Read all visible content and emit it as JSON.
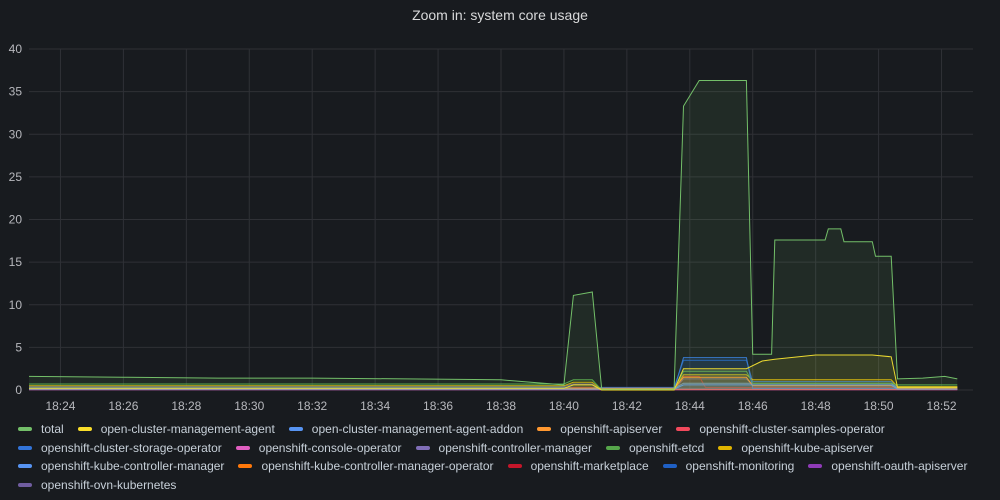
{
  "panel": {
    "title": "Zoom in: system core usage"
  },
  "chart_data": {
    "type": "line",
    "title": "Zoom in: system core usage",
    "xlabel": "",
    "ylabel": "",
    "x_ticks": [
      "18:24",
      "18:26",
      "18:28",
      "18:30",
      "18:32",
      "18:34",
      "18:36",
      "18:38",
      "18:40",
      "18:42",
      "18:44",
      "18:46",
      "18:48",
      "18:50",
      "18:52"
    ],
    "ylim": [
      0,
      40
    ],
    "y_ticks": [
      "0",
      "5",
      "10",
      "15",
      "20",
      "25",
      "30",
      "35",
      "40"
    ],
    "x_range": [
      "18:23",
      "18:53"
    ],
    "grid": true,
    "legend_position": "bottom",
    "series": [
      {
        "name": "total",
        "color": "#73bf69",
        "points": [
          [
            0,
            1.6
          ],
          [
            3,
            1.5
          ],
          [
            6,
            1.4
          ],
          [
            9,
            1.4
          ],
          [
            12,
            1.3
          ],
          [
            15,
            1.2
          ],
          [
            17,
            0.6
          ],
          [
            17.3,
            11.1
          ],
          [
            17.9,
            11.5
          ],
          [
            18.2,
            0.1
          ],
          [
            20.5,
            0.1
          ],
          [
            20.8,
            33.3
          ],
          [
            21.3,
            36.3
          ],
          [
            22.8,
            36.3
          ],
          [
            23,
            4.2
          ],
          [
            23.6,
            4.2
          ],
          [
            23.7,
            17.6
          ],
          [
            25.3,
            17.6
          ],
          [
            25.4,
            18.9
          ],
          [
            25.8,
            18.9
          ],
          [
            25.9,
            17.4
          ],
          [
            26.8,
            17.4
          ],
          [
            26.9,
            15.7
          ],
          [
            27.4,
            15.7
          ],
          [
            27.6,
            1.3
          ],
          [
            28.4,
            1.4
          ],
          [
            29.1,
            1.6
          ],
          [
            29.5,
            1.3
          ]
        ]
      },
      {
        "name": "open-cluster-management-agent",
        "color": "#fade2a",
        "points": [
          [
            0,
            0.2
          ],
          [
            17,
            0.2
          ],
          [
            17.3,
            0.6
          ],
          [
            17.9,
            0.6
          ],
          [
            18.2,
            0.0
          ],
          [
            20.5,
            0.0
          ],
          [
            20.8,
            2.5
          ],
          [
            22.8,
            2.5
          ],
          [
            23.3,
            3.4
          ],
          [
            23.7,
            3.6
          ],
          [
            25,
            4.1
          ],
          [
            26.8,
            4.1
          ],
          [
            27.4,
            3.9
          ],
          [
            27.6,
            0.3
          ],
          [
            29.5,
            0.3
          ]
        ]
      },
      {
        "name": "open-cluster-management-agent-addon",
        "color": "#5794f2",
        "points": [
          [
            0,
            0.1
          ],
          [
            20.5,
            0.1
          ],
          [
            20.8,
            0.6
          ],
          [
            27.4,
            0.6
          ],
          [
            27.6,
            0.1
          ],
          [
            29.5,
            0.1
          ]
        ]
      },
      {
        "name": "openshift-apiserver",
        "color": "#ff9830",
        "points": [
          [
            0,
            0.2
          ],
          [
            20.5,
            0.2
          ],
          [
            20.8,
            1.5
          ],
          [
            22.8,
            1.5
          ],
          [
            23,
            0.5
          ],
          [
            27.4,
            0.5
          ],
          [
            27.6,
            0.2
          ],
          [
            29.5,
            0.2
          ]
        ]
      },
      {
        "name": "openshift-cluster-samples-operator",
        "color": "#f2495c",
        "points": [
          [
            0,
            0.05
          ],
          [
            29.5,
            0.05
          ]
        ]
      },
      {
        "name": "openshift-cluster-storage-operator",
        "color": "#3274d9",
        "points": [
          [
            0,
            0.05
          ],
          [
            20.5,
            0.05
          ],
          [
            20.8,
            3.8
          ],
          [
            22.8,
            3.8
          ],
          [
            23,
            0.2
          ],
          [
            29.5,
            0.2
          ]
        ]
      },
      {
        "name": "openshift-console-operator",
        "color": "#e05ec0",
        "points": [
          [
            0,
            0.05
          ],
          [
            29.5,
            0.05
          ]
        ]
      },
      {
        "name": "openshift-controller-manager",
        "color": "#806eb7",
        "points": [
          [
            0,
            0.1
          ],
          [
            29.5,
            0.1
          ]
        ]
      },
      {
        "name": "openshift-etcd",
        "color": "#56a64b",
        "points": [
          [
            0,
            0.7
          ],
          [
            17,
            0.7
          ],
          [
            17.3,
            1.2
          ],
          [
            17.9,
            1.2
          ],
          [
            18.2,
            0.0
          ],
          [
            20.5,
            0.0
          ],
          [
            20.8,
            2.2
          ],
          [
            22.8,
            2.2
          ],
          [
            23,
            0.8
          ],
          [
            27.4,
            0.8
          ],
          [
            27.6,
            0.6
          ],
          [
            29.5,
            0.6
          ]
        ]
      },
      {
        "name": "openshift-kube-apiserver",
        "color": "#e0b400",
        "points": [
          [
            0,
            0.5
          ],
          [
            17,
            0.5
          ],
          [
            17.3,
            0.9
          ],
          [
            17.9,
            0.9
          ],
          [
            18.2,
            0.0
          ],
          [
            20.5,
            0.0
          ],
          [
            20.8,
            1.8
          ],
          [
            22.8,
            1.8
          ],
          [
            23,
            1.2
          ],
          [
            27.4,
            1.2
          ],
          [
            27.6,
            0.4
          ],
          [
            29.5,
            0.4
          ]
        ]
      },
      {
        "name": "openshift-kube-controller-manager",
        "color": "#5794f2",
        "points": [
          [
            0,
            0.2
          ],
          [
            20.5,
            0.2
          ],
          [
            20.8,
            0.8
          ],
          [
            27.4,
            0.8
          ],
          [
            27.6,
            0.2
          ],
          [
            29.5,
            0.2
          ]
        ]
      },
      {
        "name": "openshift-kube-controller-manager-operator",
        "color": "#ff780a",
        "points": [
          [
            0,
            0.1
          ],
          [
            29.5,
            0.1
          ]
        ]
      },
      {
        "name": "openshift-marketplace",
        "color": "#c4162a",
        "points": [
          [
            0,
            0.1
          ],
          [
            17,
            0.1
          ],
          [
            17.3,
            0.3
          ],
          [
            17.9,
            0.3
          ],
          [
            18.2,
            0.0
          ],
          [
            20.5,
            0.0
          ],
          [
            20.8,
            1.6
          ],
          [
            21.3,
            1.6
          ],
          [
            21.5,
            0.3
          ],
          [
            29.5,
            0.3
          ]
        ]
      },
      {
        "name": "openshift-monitoring",
        "color": "#1f60c4",
        "points": [
          [
            0,
            0.3
          ],
          [
            20.5,
            0.3
          ],
          [
            20.8,
            3.5
          ],
          [
            22.8,
            3.5
          ],
          [
            23,
            1.0
          ],
          [
            27.4,
            1.0
          ],
          [
            27.6,
            0.3
          ],
          [
            29.5,
            0.3
          ]
        ]
      },
      {
        "name": "openshift-oauth-apiserver",
        "color": "#8f3bb8",
        "points": [
          [
            0,
            0.05
          ],
          [
            29.5,
            0.05
          ]
        ]
      },
      {
        "name": "openshift-ovn-kubernetes",
        "color": "#705da0",
        "points": [
          [
            0,
            0.4
          ],
          [
            17,
            0.4
          ],
          [
            17.3,
            0.7
          ],
          [
            17.9,
            0.7
          ],
          [
            18.2,
            0.0
          ],
          [
            20.5,
            0.0
          ],
          [
            20.8,
            1.3
          ],
          [
            22.8,
            1.3
          ],
          [
            23,
            0.6
          ],
          [
            27.4,
            0.6
          ],
          [
            27.6,
            0.4
          ],
          [
            29.5,
            0.4
          ]
        ]
      }
    ]
  }
}
